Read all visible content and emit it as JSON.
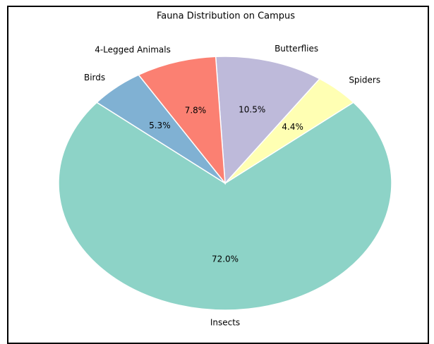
{
  "chart_data": {
    "type": "pie",
    "title": "Fauna Distribution on Campus",
    "categories": [
      "Insects",
      "Spiders",
      "Butterflies",
      "4-Legged Animals",
      "Birds"
    ],
    "values": [
      72.0,
      4.4,
      10.5,
      7.8,
      5.3
    ],
    "value_labels": [
      "72.0%",
      "4.4%",
      "10.5%",
      "7.8%",
      "5.3%"
    ],
    "colors": [
      "#8dd3c7",
      "#ffffb3",
      "#bebada",
      "#fb8072",
      "#80b1d3"
    ]
  }
}
